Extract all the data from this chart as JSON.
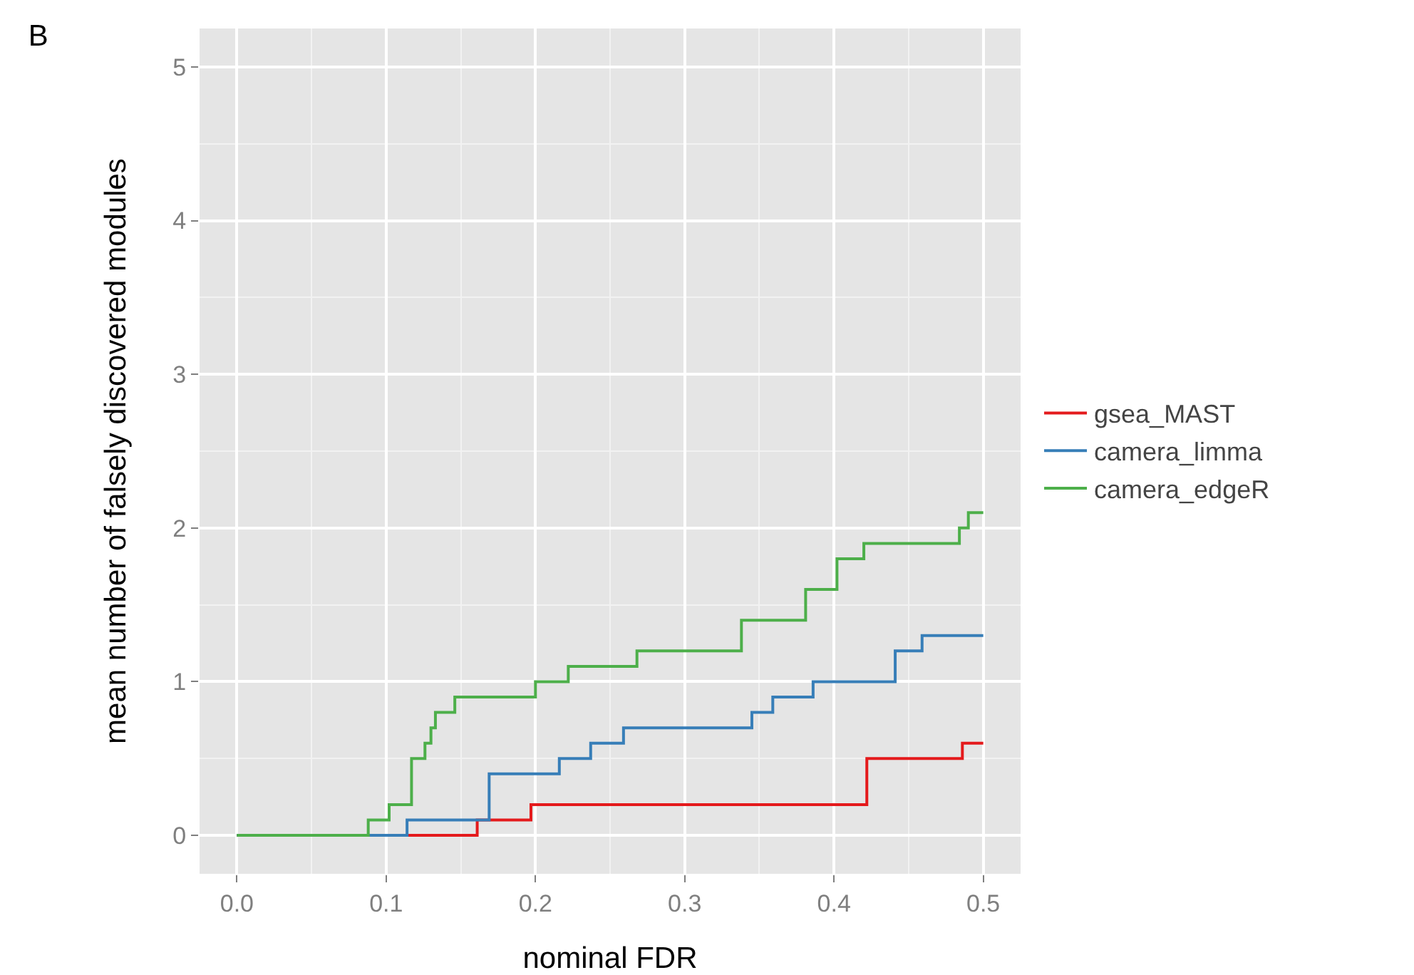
{
  "chart_data": {
    "type": "step",
    "title": "B",
    "xlabel": "nominal FDR",
    "ylabel": "mean number of falsely discovered modules",
    "xlim": [
      -0.025,
      0.525
    ],
    "xticks": [
      {
        "value": 0,
        "label": "0.0"
      },
      0.1,
      0.2,
      0.3,
      0.4,
      0.5
    ],
    "ylim": [
      -0.25,
      5.25
    ],
    "yticks": [
      0,
      1,
      2,
      3,
      4,
      5
    ],
    "grid": true,
    "legend": "right",
    "line_style": "solid",
    "marker": "none",
    "series": [
      {
        "name": "gsea_MAST",
        "color": "#e41a1c",
        "x": [
          0,
          0.161,
          0.197,
          0.422,
          0.486,
          0.5
        ],
        "values": [
          0,
          0.1,
          0.2,
          0.5,
          0.6,
          0.6
        ]
      },
      {
        "name": "camera_limma",
        "color": "#377eb8",
        "x": [
          0,
          0.114,
          0.169,
          0.216,
          0.237,
          0.259,
          0.345,
          0.359,
          0.386,
          0.441,
          0.459,
          0.5
        ],
        "values": [
          0,
          0.1,
          0.4,
          0.5,
          0.6,
          0.7,
          0.8,
          0.9,
          1.0,
          1.2,
          1.3,
          1.3
        ]
      },
      {
        "name": "camera_edgeR",
        "color": "#4daf4a",
        "x": [
          0,
          0.088,
          0.102,
          0.117,
          0.126,
          0.13,
          0.133,
          0.146,
          0.2,
          0.222,
          0.268,
          0.338,
          0.381,
          0.402,
          0.42,
          0.484,
          0.49,
          0.5
        ],
        "values": [
          0,
          0.1,
          0.2,
          0.5,
          0.6,
          0.7,
          0.8,
          0.9,
          1.0,
          1.1,
          1.2,
          1.4,
          1.6,
          1.8,
          1.9,
          2.0,
          2.1,
          2.1
        ]
      }
    ]
  }
}
